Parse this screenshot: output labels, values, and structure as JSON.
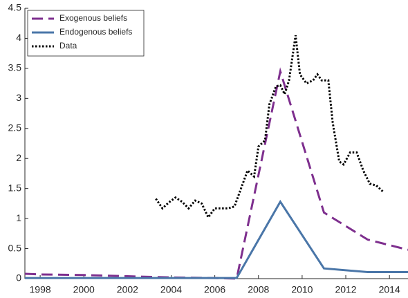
{
  "chart_data": {
    "type": "line",
    "xlim": [
      1997.3,
      2014.85
    ],
    "ylim": [
      0,
      4.5
    ],
    "xticks": [
      1998,
      2000,
      2002,
      2004,
      2006,
      2008,
      2010,
      2012,
      2014
    ],
    "yticks": [
      0,
      0.5,
      1,
      1.5,
      2,
      2.5,
      3,
      3.5,
      4,
      4.5
    ],
    "legend_position": "upper-left",
    "series": [
      {
        "name": "Exogenous beliefs",
        "color": "#7e2f8e",
        "dash": "dashed",
        "x": [
          1997.3,
          1998,
          2000,
          2002,
          2004,
          2006,
          2007,
          2009,
          2011,
          2013,
          2014.85
        ],
        "values": [
          0.08,
          0.07,
          0.06,
          0.04,
          0.02,
          0.01,
          0.0,
          3.45,
          1.1,
          0.65,
          0.48
        ]
      },
      {
        "name": "Endogenous beliefs",
        "color": "#4a76a8",
        "dash": "solid",
        "x": [
          1997.3,
          2007,
          2009,
          2011,
          2013,
          2014.85
        ],
        "values": [
          0.01,
          0.01,
          1.28,
          0.17,
          0.11,
          0.11
        ]
      },
      {
        "name": "Data",
        "color": "#000000",
        "dash": "dotted",
        "x": [
          2003.3,
          2003.6,
          2003.9,
          2004.2,
          2004.5,
          2004.8,
          2005.1,
          2005.4,
          2005.7,
          2006.0,
          2006.3,
          2006.6,
          2006.9,
          2007.2,
          2007.5,
          2007.8,
          2008.0,
          2008.3,
          2008.5,
          2008.8,
          2009.0,
          2009.2,
          2009.4,
          2009.7,
          2009.9,
          2010.2,
          2010.5,
          2010.7,
          2010.9,
          2011.2,
          2011.4,
          2011.7,
          2011.9,
          2012.2,
          2012.5,
          2012.8,
          2013.1,
          2013.4,
          2013.7
        ],
        "values": [
          1.33,
          1.17,
          1.27,
          1.35,
          1.28,
          1.17,
          1.3,
          1.25,
          1.02,
          1.17,
          1.17,
          1.17,
          1.2,
          1.5,
          1.8,
          1.7,
          2.2,
          2.3,
          2.9,
          3.2,
          3.22,
          3.07,
          3.3,
          4.05,
          3.4,
          3.25,
          3.3,
          3.4,
          3.3,
          3.3,
          2.6,
          1.95,
          1.9,
          2.1,
          2.1,
          1.8,
          1.58,
          1.55,
          1.45
        ]
      }
    ]
  }
}
